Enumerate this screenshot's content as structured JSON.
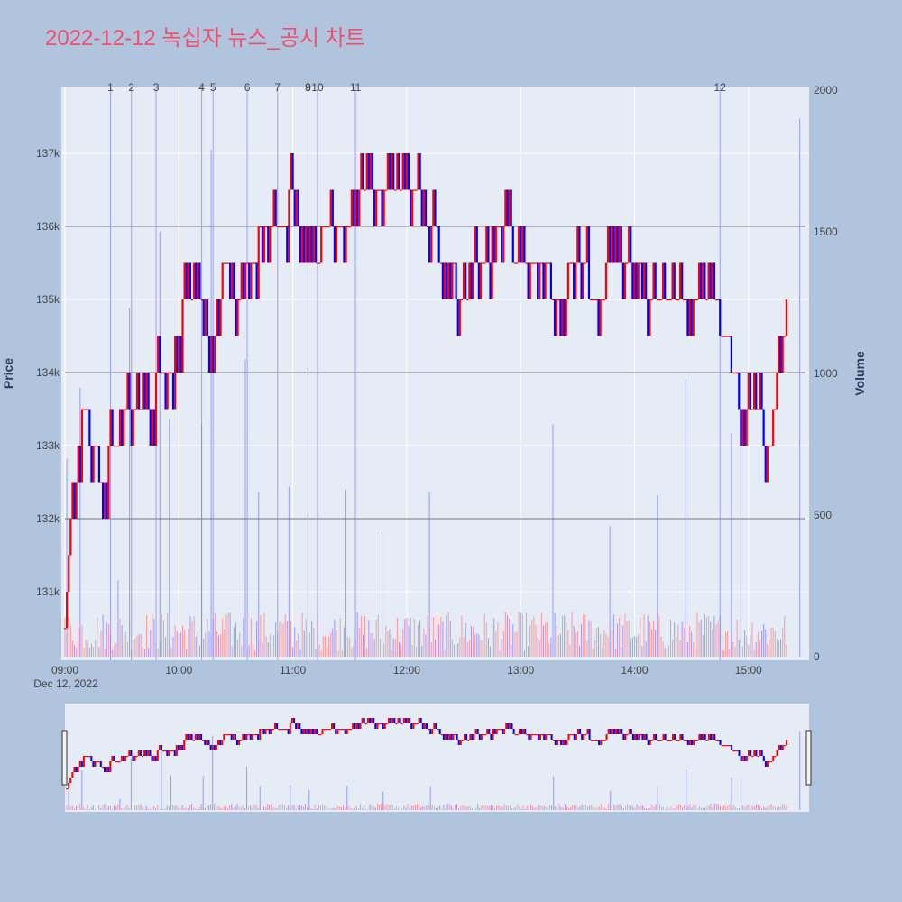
{
  "title": "2022-12-12 녹십자 뉴스_공시 차트",
  "colors": {
    "page_bg": "#b0c4de",
    "plot_bg": "#e5ecf6",
    "up": "#ff0000",
    "down": "#0000ff",
    "title": "#f0506e",
    "news_line": "#7f7fff",
    "grid": "#ffffff"
  },
  "chart_data": {
    "type": "candlestick",
    "session_date_label": "Dec 12, 2022",
    "x_ticks": [
      "09:00",
      "10:00",
      "11:00",
      "12:00",
      "13:00",
      "14:00",
      "15:00"
    ],
    "x_range": [
      "09:00",
      "15:30"
    ],
    "price_axis": {
      "title": "Price",
      "ticks": [
        "131k",
        "132k",
        "133k",
        "134k",
        "135k",
        "136k",
        "137k"
      ],
      "range": [
        130000,
        137900
      ]
    },
    "volume_axis": {
      "title": "Volume",
      "ticks": [
        "0",
        "500",
        "1000",
        "1500",
        "2000"
      ],
      "range": [
        0,
        2000
      ]
    },
    "reference_lines": [
      {
        "axis": "price",
        "value": 136000
      },
      {
        "axis": "price",
        "value": 134000
      },
      {
        "axis": "price",
        "value": 132000
      }
    ],
    "news_markers": [
      {
        "label": "1",
        "time": "09:24"
      },
      {
        "label": "2",
        "time": "09:35"
      },
      {
        "label": "3",
        "time": "09:48"
      },
      {
        "label": "4",
        "time": "10:12"
      },
      {
        "label": "5",
        "time": "10:18"
      },
      {
        "label": "6",
        "time": "10:36"
      },
      {
        "label": "7",
        "time": "10:52"
      },
      {
        "label": "8",
        "time": "11:08"
      },
      {
        "label": "9",
        "time": "11:08"
      },
      {
        "label": "10",
        "time": "11:13"
      },
      {
        "label": "11",
        "time": "11:33"
      },
      {
        "label": "12",
        "time": "14:45"
      }
    ],
    "price_path": [
      [
        "09:00",
        130500
      ],
      [
        "09:02",
        131500
      ],
      [
        "09:04",
        132500
      ],
      [
        "09:05",
        132000
      ],
      [
        "09:07",
        133000
      ],
      [
        "09:10",
        133500
      ],
      [
        "09:14",
        133000
      ],
      [
        "09:20",
        132500
      ],
      [
        "09:25",
        133000
      ],
      [
        "09:30",
        133000
      ],
      [
        "09:32",
        133500
      ],
      [
        "09:36",
        133500
      ],
      [
        "09:40",
        133500
      ],
      [
        "09:45",
        133500
      ],
      [
        "09:50",
        134000
      ],
      [
        "09:56",
        134000
      ],
      [
        "10:00",
        134500
      ],
      [
        "10:03",
        135000
      ],
      [
        "10:10",
        135000
      ],
      [
        "10:14",
        134500
      ],
      [
        "10:17",
        134000
      ],
      [
        "10:20",
        135000
      ],
      [
        "10:25",
        135500
      ],
      [
        "10:32",
        135000
      ],
      [
        "10:38",
        135500
      ],
      [
        "10:45",
        136000
      ],
      [
        "10:55",
        136000
      ],
      [
        "11:00",
        136500
      ],
      [
        "11:05",
        136000
      ],
      [
        "11:10",
        135500
      ],
      [
        "11:20",
        136000
      ],
      [
        "11:28",
        136000
      ],
      [
        "11:33",
        136500
      ],
      [
        "11:45",
        136500
      ],
      [
        "11:55",
        136500
      ],
      [
        "12:05",
        136500
      ],
      [
        "12:12",
        136000
      ],
      [
        "12:20",
        135500
      ],
      [
        "12:30",
        135000
      ],
      [
        "12:40",
        135500
      ],
      [
        "12:50",
        136000
      ],
      [
        "13:00",
        135500
      ],
      [
        "13:10",
        135500
      ],
      [
        "13:20",
        135000
      ],
      [
        "13:30",
        135500
      ],
      [
        "13:40",
        135000
      ],
      [
        "13:50",
        135500
      ],
      [
        "14:00",
        135500
      ],
      [
        "14:10",
        135000
      ],
      [
        "14:20",
        135000
      ],
      [
        "14:30",
        135000
      ],
      [
        "14:40",
        135000
      ],
      [
        "14:48",
        134500
      ],
      [
        "14:52",
        134000
      ],
      [
        "14:58",
        133500
      ],
      [
        "15:05",
        133500
      ],
      [
        "15:12",
        133000
      ],
      [
        "15:16",
        134000
      ],
      [
        "15:20",
        134500
      ]
    ],
    "volume_spikes": [
      [
        "09:01",
        700
      ],
      [
        "09:08",
        950
      ],
      [
        "09:28",
        270
      ],
      [
        "09:34",
        1230
      ],
      [
        "09:50",
        1500
      ],
      [
        "09:55",
        840
      ],
      [
        "10:12",
        820
      ],
      [
        "10:17",
        1790
      ],
      [
        "10:35",
        1050
      ],
      [
        "10:42",
        580
      ],
      [
        "10:58",
        600
      ],
      [
        "11:08",
        480
      ],
      [
        "11:28",
        590
      ],
      [
        "11:47",
        440
      ],
      [
        "12:12",
        580
      ],
      [
        "13:17",
        820
      ],
      [
        "13:47",
        460
      ],
      [
        "14:12",
        570
      ],
      [
        "14:27",
        980
      ],
      [
        "14:51",
        790
      ],
      [
        "14:56",
        740
      ],
      [
        "15:27",
        1900
      ]
    ]
  },
  "range_slider": {
    "visible": true
  }
}
